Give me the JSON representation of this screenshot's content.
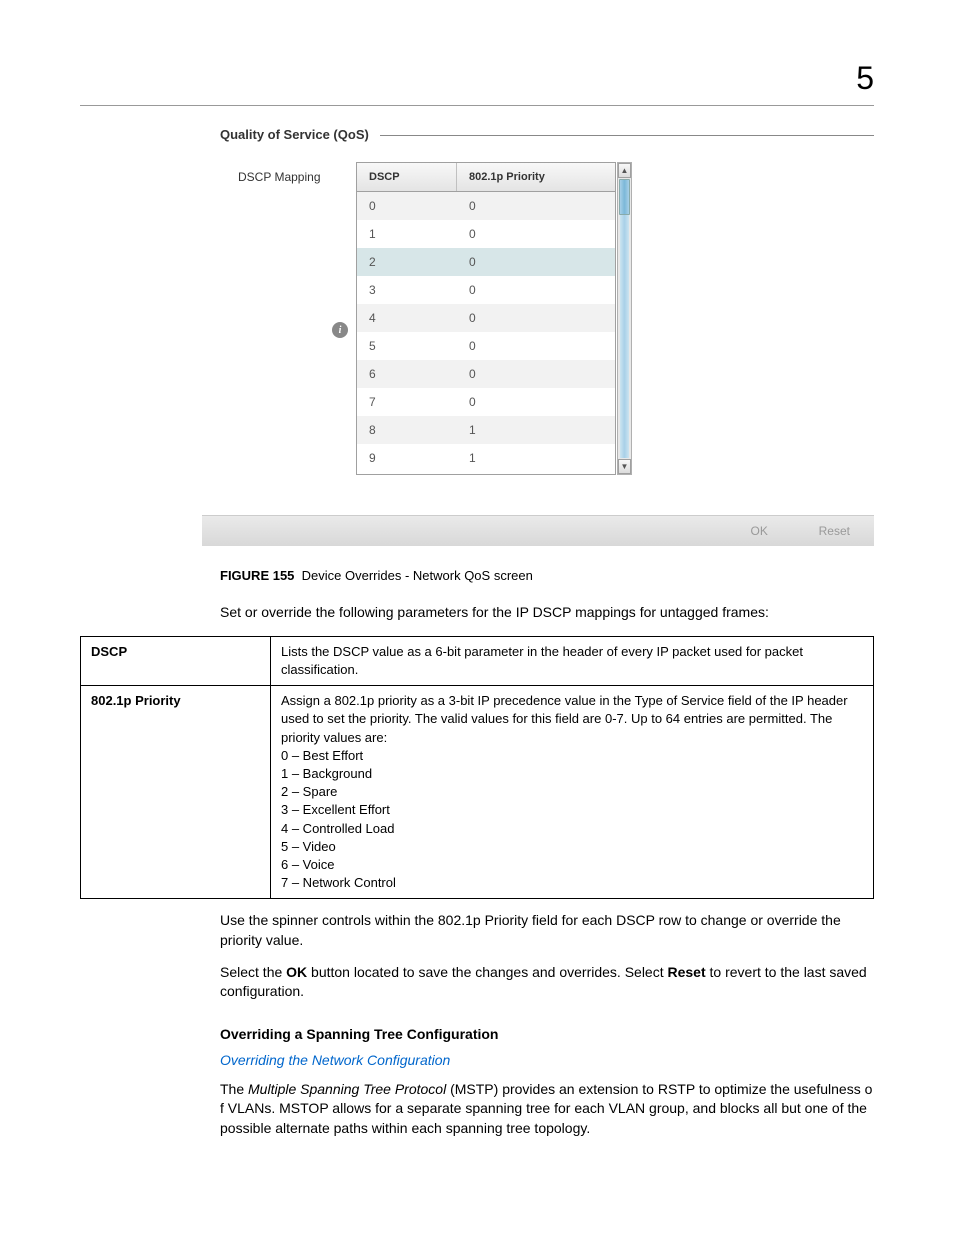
{
  "chapter": "5",
  "screenshot": {
    "fieldset_title": "Quality of Service (QoS)",
    "label": "DSCP Mapping",
    "columns": [
      "DSCP",
      "802.1p Priority"
    ],
    "rows": [
      {
        "dscp": "0",
        "pri": "0",
        "sel": false
      },
      {
        "dscp": "1",
        "pri": "0",
        "sel": false
      },
      {
        "dscp": "2",
        "pri": "0",
        "sel": true
      },
      {
        "dscp": "3",
        "pri": "0",
        "sel": false
      },
      {
        "dscp": "4",
        "pri": "0",
        "sel": false
      },
      {
        "dscp": "5",
        "pri": "0",
        "sel": false
      },
      {
        "dscp": "6",
        "pri": "0",
        "sel": false
      },
      {
        "dscp": "7",
        "pri": "0",
        "sel": false
      },
      {
        "dscp": "8",
        "pri": "1",
        "sel": false
      },
      {
        "dscp": "9",
        "pri": "1",
        "sel": false
      }
    ],
    "buttons": {
      "ok": "OK",
      "reset": "Reset"
    }
  },
  "figure": {
    "num": "FIGURE 155",
    "caption": "Device Overrides - Network QoS screen"
  },
  "intro": "Set or override the following parameters for the IP DSCP mappings for untagged frames:",
  "defs": [
    {
      "term": "DSCP",
      "desc": "Lists the DSCP value as a 6-bit parameter in the header of every IP packet used for packet classification."
    },
    {
      "term": "802.1p Priority",
      "desc_lines": [
        "Assign a 802.1p priority as a 3-bit IP precedence value in the Type of Service field of the IP header used to set the priority. The valid values for this field are 0-7. Up to 64 entries are permitted. The priority values are:",
        "0 – Best Effort",
        "1 – Background",
        "2 – Spare",
        "3 – Excellent Effort",
        "4 – Controlled Load",
        "5 – Video",
        "6 – Voice",
        "7  – Network Control"
      ]
    }
  ],
  "para1": "Use the spinner controls within the 802.1p Priority field for each DSCP row to change or override the priority value.",
  "para2_pre": "Select the ",
  "para2_b1": "OK",
  "para2_mid": " button located to save the changes and overrides. Select ",
  "para2_b2": "Reset",
  "para2_post": " to revert to the last saved configuration.",
  "section_heading": "Overriding a Spanning Tree Configuration",
  "link_text": "Overriding the Network Configuration",
  "mstp_pre": "The ",
  "mstp_em": "Multiple Spanning Tree Protocol",
  "mstp_post": " (MSTP) provides an extension to RSTP to optimize the usefulness o f VLANs. MSTOP allows for a separate spanning tree for each VLAN group, and blocks all but one of the possible alternate paths within each spanning tree topology."
}
